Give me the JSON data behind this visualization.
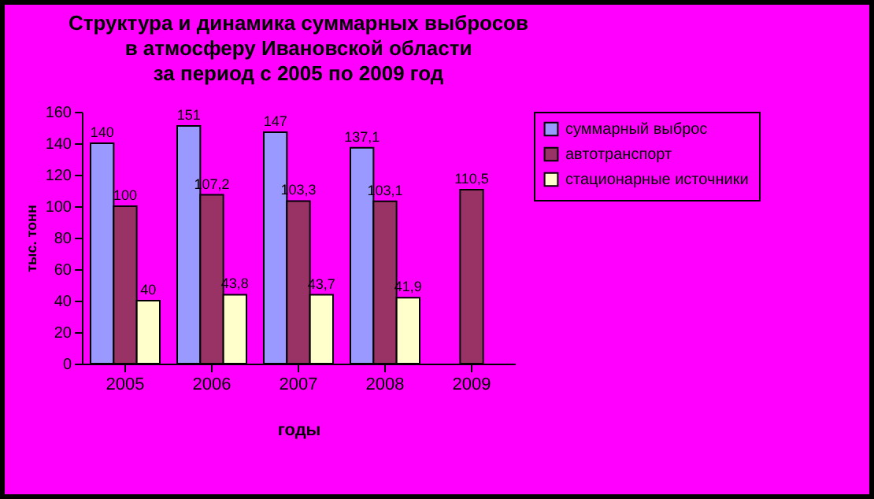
{
  "chart_data": {
    "type": "bar",
    "title": "Структура и динамика суммарных выбросов\nв атмосферу Ивановской области\nза период с 2005 по 2009 год",
    "xlabel": "годы",
    "ylabel": "тыс. тонн",
    "categories": [
      "2005",
      "2006",
      "2007",
      "2008",
      "2009"
    ],
    "series": [
      {
        "name": "суммарный выброс",
        "color": "#9999ff",
        "values": [
          140,
          151,
          147,
          137.1,
          null
        ],
        "value_labels": [
          "140",
          "151",
          "147",
          "137,1",
          null
        ]
      },
      {
        "name": "автотранспорт",
        "color": "#993366",
        "values": [
          100,
          107.2,
          103.3,
          103.1,
          110.5
        ],
        "value_labels": [
          "100",
          "107,2",
          "103,3",
          "103,1",
          "110,5"
        ]
      },
      {
        "name": "стационарные источники",
        "color": "#ffffcc",
        "values": [
          40,
          43.8,
          43.7,
          41.9,
          null
        ],
        "value_labels": [
          "40",
          "43,8",
          "43,7",
          "41,9",
          null
        ]
      }
    ],
    "ylim": [
      0,
      160
    ],
    "yticks": [
      0,
      20,
      40,
      60,
      80,
      100,
      120,
      140,
      160
    ],
    "legend": "right",
    "grid": false
  }
}
